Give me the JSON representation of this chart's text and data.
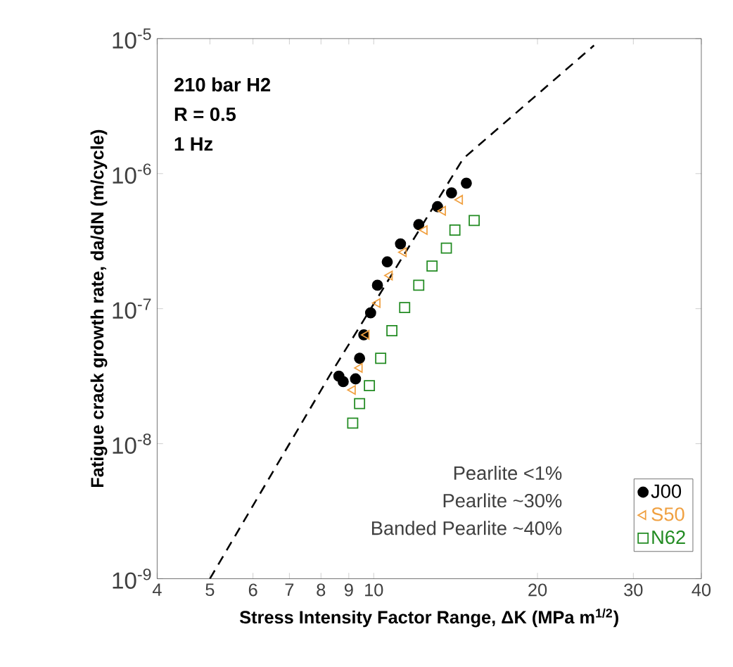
{
  "chart_data": {
    "type": "scatter",
    "xlabel": "Stress Intensity Factor Range, ΔK (MPa m$^{1/2}$)",
    "ylabel": "Fatigue crack growth rate, da/dN (m/cycle)",
    "annotations": [
      "210 bar H2",
      "R = 0.5",
      "1 Hz",
      "Pearlite <1%",
      "Pearlite ~30%",
      "Banded Pearlite ~40%"
    ],
    "log": "xy",
    "xlim": [
      4,
      40
    ],
    "ylim": [
      1e-09,
      1e-05
    ],
    "xticks": [
      4,
      5,
      6,
      7,
      8,
      9,
      10,
      20,
      30,
      40
    ],
    "yticks": [
      {
        "value": 1e-09,
        "label": "10$^{-9}$"
      },
      {
        "value": 1e-08,
        "label": "10$^{-8}$"
      },
      {
        "value": 1e-07,
        "label": "10$^{-7}$"
      },
      {
        "value": 1e-06,
        "label": "10$^{-6}$"
      },
      {
        "value": 1e-05,
        "label": "10$^{-5}$"
      }
    ],
    "grid": false,
    "legend": "bottom right",
    "series": [
      {
        "type": "line",
        "color": "#000000",
        "line_style": "dashed",
        "marker": "none",
        "x": [
          5,
          8.3,
          14.6,
          25.4
        ],
        "values": [
          1e-09,
          3.2e-08,
          1.29e-06,
          8.9e-06
        ]
      },
      {
        "name": "J00",
        "color": "#000000",
        "marker": "circle",
        "x": [
          8.63,
          8.79,
          9.26,
          9.42,
          9.59,
          9.87,
          10.16,
          10.59,
          11.2,
          12.1,
          13.1,
          13.9,
          14.8
        ],
        "values": [
          3.16e-08,
          2.88e-08,
          3.02e-08,
          4.29e-08,
          6.4e-08,
          9.31e-08,
          1.49e-07,
          2.22e-07,
          3.02e-07,
          4.19e-07,
          5.69e-07,
          7.2e-07,
          8.5e-07
        ]
      },
      {
        "name": "S50",
        "color": "#f0a040",
        "marker": "triangle",
        "x": [
          9.15,
          9.42,
          9.7,
          10.16,
          10.7,
          11.35,
          12.4,
          13.4,
          14.4
        ],
        "values": [
          2.5e-08,
          3.64e-08,
          6.4e-08,
          1.1e-07,
          1.76e-07,
          2.62e-07,
          3.82e-07,
          5.3e-07,
          6.4e-07
        ]
      },
      {
        "name": "N62",
        "color": "#228b22",
        "marker": "square",
        "x": [
          9.15,
          9.42,
          9.82,
          10.3,
          10.8,
          11.4,
          12.1,
          12.8,
          13.6,
          14.1,
          15.3
        ],
        "values": [
          1.42e-08,
          1.98e-08,
          2.69e-08,
          4.29e-08,
          6.87e-08,
          1.02e-07,
          1.49e-07,
          2.07e-07,
          2.81e-07,
          3.82e-07,
          4.5e-07
        ]
      }
    ]
  }
}
